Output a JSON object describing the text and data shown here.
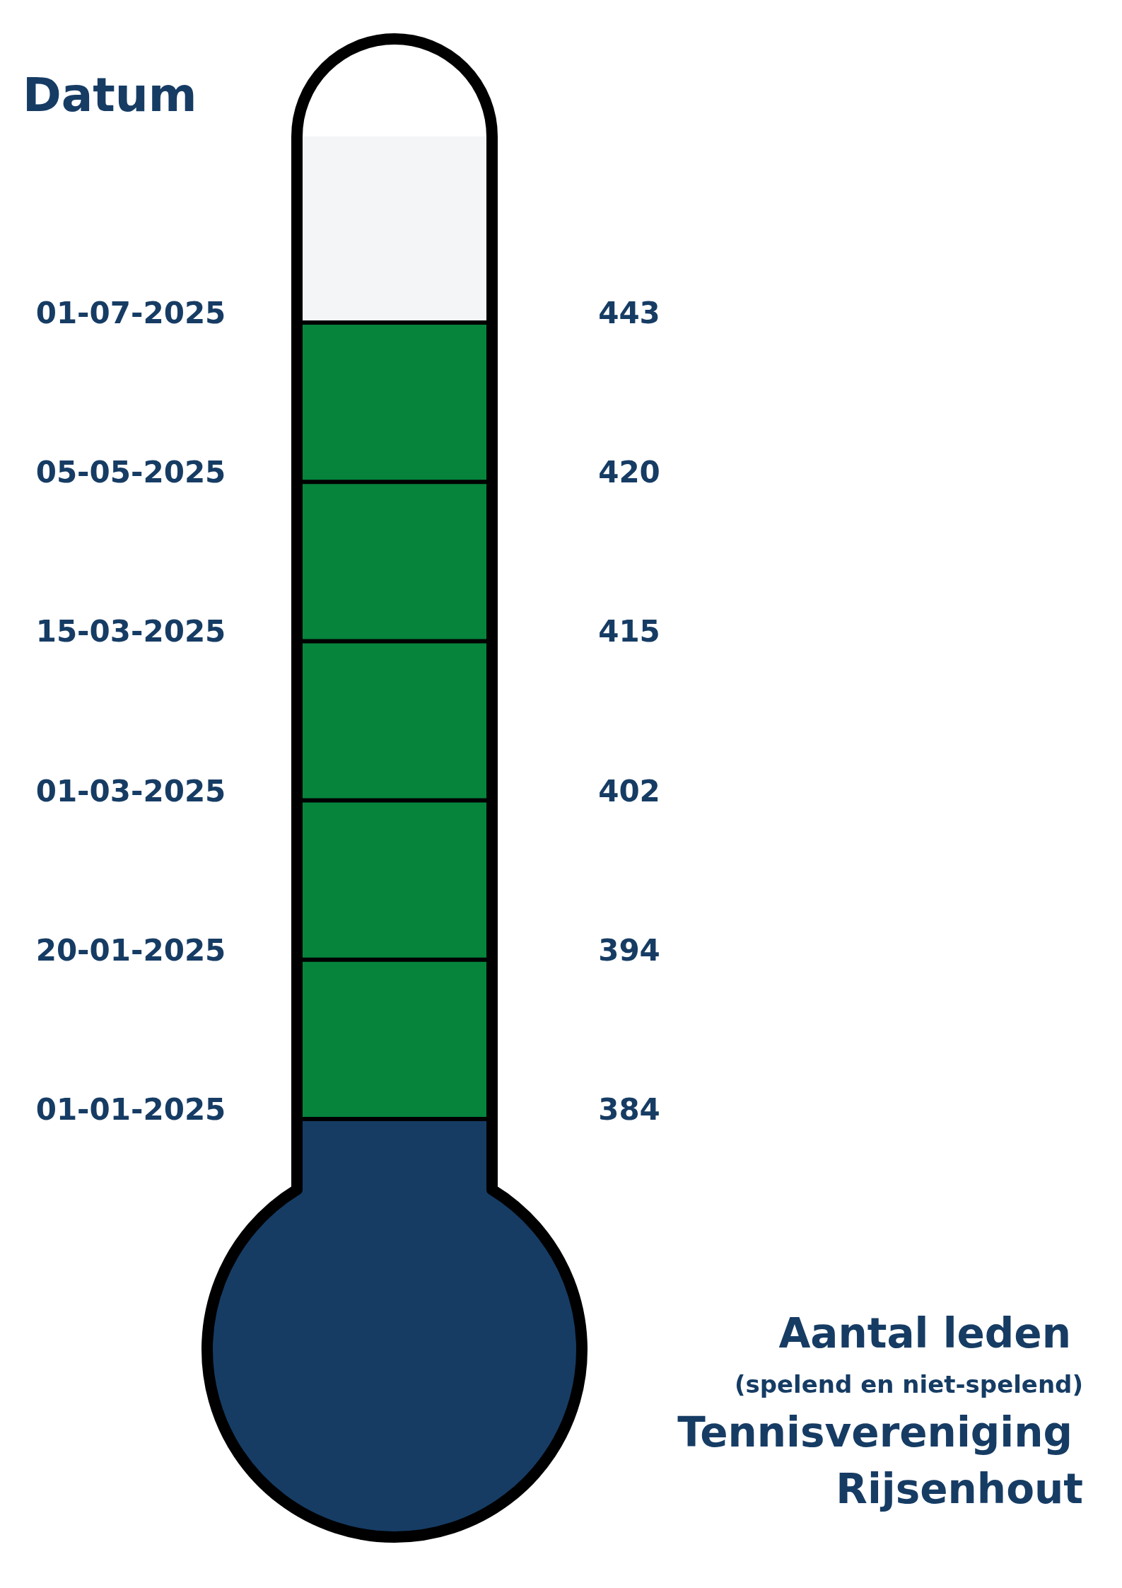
{
  "chart_data": {
    "type": "other",
    "title": "Aantal leden",
    "subtitle": "(spelend en niet-spelend)",
    "xlabel": "Datum",
    "annotations": [
      "Tennisvereniging Rijsenhout"
    ],
    "categories": [
      "01-07-2025",
      "05-05-2025",
      "15-03-2025",
      "01-03-2025",
      "20-01-2025",
      "01-01-2025"
    ],
    "values": [
      443,
      420,
      415,
      402,
      394,
      384
    ],
    "color": "#06843c",
    "data_labels": true
  }
}
